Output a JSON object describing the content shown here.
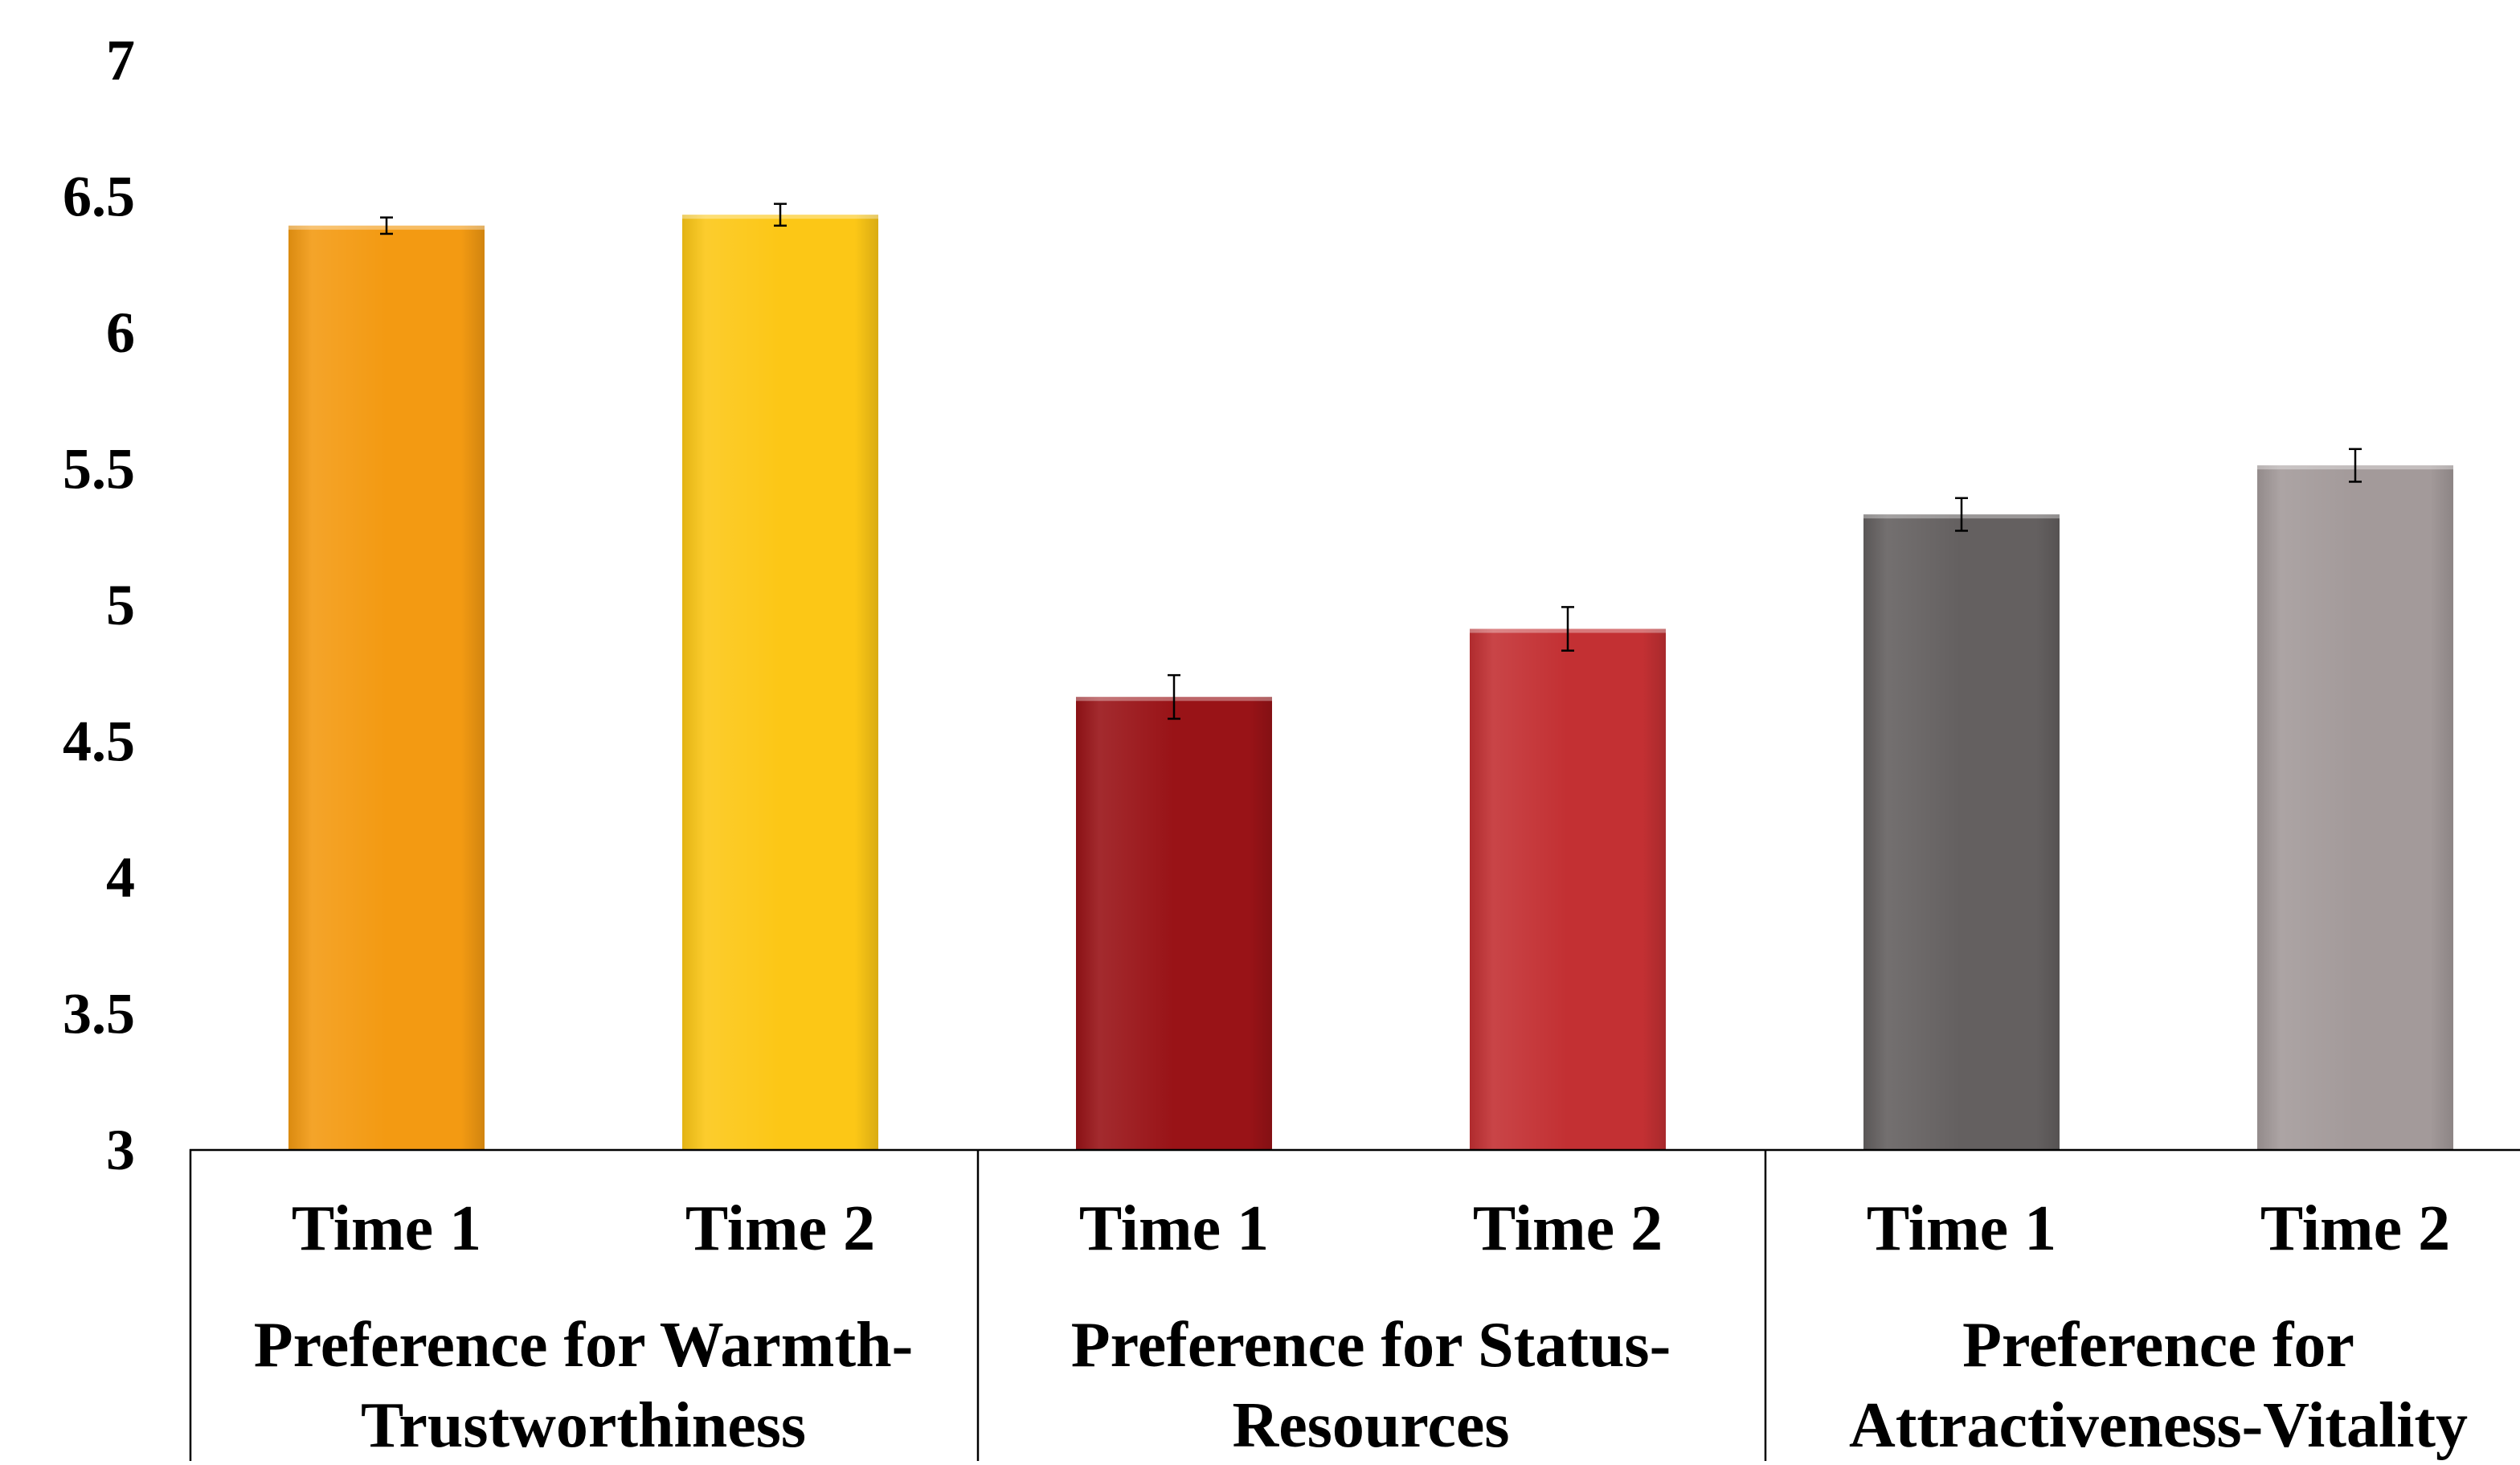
{
  "chart_data": {
    "type": "bar",
    "title": "",
    "xlabel": "",
    "ylabel": "",
    "ylim": [
      3,
      7
    ],
    "yticks": [
      3,
      3.5,
      4,
      4.5,
      5,
      5.5,
      6,
      6.5,
      7
    ],
    "ytick_labels": [
      "3",
      "3.5",
      "4",
      "4.5",
      "5",
      "5.5",
      "6",
      "6.5",
      "7"
    ],
    "grid": false,
    "legend": "none",
    "groups": [
      {
        "label_lines": [
          "Preference for Warmth-",
          "Trustworthiness"
        ],
        "bars": [
          {
            "category": "Time 1",
            "value": 6.39,
            "error": 0.03,
            "color": "#F39A12"
          },
          {
            "category": "Time 2",
            "value": 6.43,
            "error": 0.04,
            "color": "#FCC716"
          }
        ]
      },
      {
        "label_lines": [
          "Preference for Status-",
          "Resources"
        ],
        "bars": [
          {
            "category": "Time 1",
            "value": 4.66,
            "error": 0.08,
            "color": "#991317"
          },
          {
            "category": "Time 2",
            "value": 4.91,
            "error": 0.08,
            "color": "#C33033"
          }
        ]
      },
      {
        "label_lines": [
          "Preference for",
          "Attractiveness-Vitality"
        ],
        "bars": [
          {
            "category": "Time 1",
            "value": 5.33,
            "error": 0.06,
            "color": "#646060"
          },
          {
            "category": "Time 2",
            "value": 5.51,
            "error": 0.06,
            "color": "#A39A9A"
          }
        ]
      }
    ]
  }
}
